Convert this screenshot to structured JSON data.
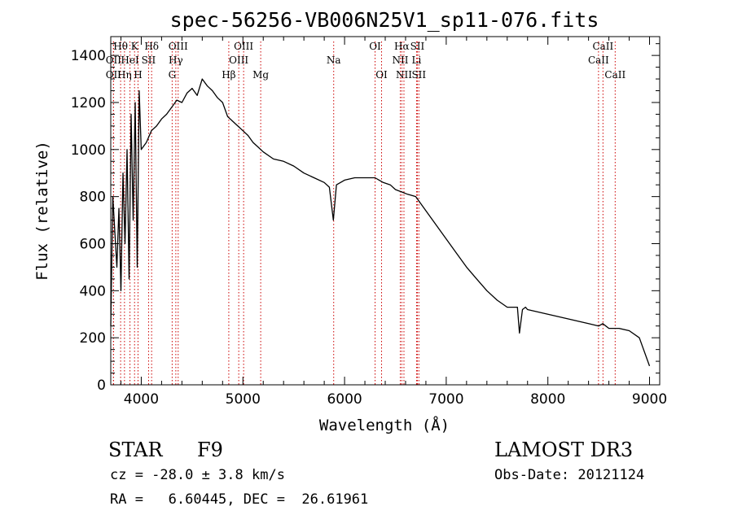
{
  "chart_data": {
    "type": "line",
    "title": "spec-56256-VB006N25V1_sp11-076.fits",
    "xlabel": "Wavelength (Å)",
    "ylabel": "Flux (relative)",
    "xlim": [
      3700,
      9100
    ],
    "ylim": [
      0,
      1480
    ],
    "x_ticks": [
      4000,
      5000,
      6000,
      7000,
      8000,
      9000
    ],
    "x_tick_labels": [
      "4000",
      "5000",
      "6000",
      "7000",
      "8000",
      "9000"
    ],
    "y_ticks": [
      0,
      200,
      400,
      600,
      800,
      1000,
      1200,
      1400
    ],
    "y_tick_labels": [
      "0",
      "200",
      "400",
      "600",
      "800",
      "1000",
      "1200",
      "1400"
    ],
    "series": [
      {
        "name": "flux",
        "x": [
          3700,
          3720,
          3740,
          3760,
          3780,
          3800,
          3820,
          3840,
          3860,
          3880,
          3900,
          3920,
          3940,
          3960,
          3980,
          4000,
          4050,
          4100,
          4150,
          4200,
          4250,
          4300,
          4350,
          4400,
          4450,
          4500,
          4550,
          4600,
          4650,
          4700,
          4750,
          4800,
          4850,
          4900,
          4950,
          5000,
          5050,
          5100,
          5150,
          5200,
          5300,
          5400,
          5500,
          5600,
          5700,
          5800,
          5850,
          5890,
          5920,
          6000,
          6100,
          6200,
          6300,
          6340,
          6380,
          6450,
          6500,
          6560,
          6620,
          6700,
          6800,
          6900,
          7000,
          7100,
          7200,
          7300,
          7400,
          7500,
          7600,
          7700,
          7720,
          7750,
          7780,
          7800,
          7900,
          8000,
          8100,
          8200,
          8300,
          8400,
          8500,
          8540,
          8600,
          8700,
          8800,
          8900,
          9000
        ],
        "y": [
          250,
          800,
          650,
          500,
          750,
          400,
          900,
          600,
          1000,
          450,
          1150,
          700,
          1200,
          500,
          1250,
          1000,
          1030,
          1080,
          1100,
          1130,
          1150,
          1180,
          1210,
          1200,
          1240,
          1260,
          1230,
          1300,
          1270,
          1250,
          1220,
          1200,
          1140,
          1120,
          1100,
          1080,
          1060,
          1030,
          1010,
          990,
          960,
          950,
          930,
          900,
          880,
          860,
          840,
          700,
          850,
          870,
          880,
          880,
          880,
          870,
          860,
          850,
          830,
          820,
          810,
          800,
          740,
          680,
          620,
          560,
          500,
          450,
          400,
          360,
          330,
          330,
          220,
          320,
          330,
          320,
          310,
          300,
          290,
          280,
          270,
          260,
          250,
          260,
          240,
          240,
          230,
          200,
          80
        ]
      }
    ],
    "spectral_lines": [
      {
        "label": "Hθ",
        "wavelength": 3797,
        "row": 1
      },
      {
        "label": "OII",
        "wavelength": 3727,
        "row": 2
      },
      {
        "label": "OII",
        "wavelength": 3727,
        "row": 3
      },
      {
        "label": "Hη",
        "wavelength": 3835,
        "row": 3
      },
      {
        "label": "HeI",
        "wavelength": 3889,
        "row": 2
      },
      {
        "label": "K",
        "wavelength": 3934,
        "row": 1
      },
      {
        "label": "H",
        "wavelength": 3968,
        "row": 3
      },
      {
        "label": "SII",
        "wavelength": 4072,
        "row": 2
      },
      {
        "label": "Hδ",
        "wavelength": 4102,
        "row": 1
      },
      {
        "label": "OIII",
        "wavelength": 4363,
        "row": 1
      },
      {
        "label": "Hγ",
        "wavelength": 4340,
        "row": 2
      },
      {
        "label": "G",
        "wavelength": 4304,
        "row": 3
      },
      {
        "label": "Hβ",
        "wavelength": 4861,
        "row": 3
      },
      {
        "label": "OIII",
        "wavelength": 5007,
        "row": 1
      },
      {
        "label": "OIII",
        "wavelength": 4959,
        "row": 2
      },
      {
        "label": "Mg",
        "wavelength": 5175,
        "row": 3
      },
      {
        "label": "Na",
        "wavelength": 5893,
        "row": 2
      },
      {
        "label": "OI",
        "wavelength": 6300,
        "row": 1
      },
      {
        "label": "OI",
        "wavelength": 6364,
        "row": 3
      },
      {
        "label": "Hα",
        "wavelength": 6563,
        "row": 1
      },
      {
        "label": "SII",
        "wavelength": 6716,
        "row": 1
      },
      {
        "label": "NII",
        "wavelength": 6548,
        "row": 2
      },
      {
        "label": "Li",
        "wavelength": 6708,
        "row": 2
      },
      {
        "label": "NII",
        "wavelength": 6584,
        "row": 3
      },
      {
        "label": "SII",
        "wavelength": 6731,
        "row": 3
      },
      {
        "label": "CaII",
        "wavelength": 8542,
        "row": 1
      },
      {
        "label": "CaII",
        "wavelength": 8498,
        "row": 2
      },
      {
        "label": "CaII",
        "wavelength": 8662,
        "row": 3
      }
    ]
  },
  "info": {
    "object_class": "STAR",
    "subclass": "F9",
    "survey": "LAMOST DR3",
    "redshift_line": "cz = -28.0 ± 3.8 km/s",
    "obs_date_line": "Obs-Date: 20121124",
    "coords_line": "RA =   6.60445, DEC =  26.61961"
  },
  "colors": {
    "axis": "#000000",
    "spectrum": "#000000",
    "line_marker": "#cc0000"
  }
}
